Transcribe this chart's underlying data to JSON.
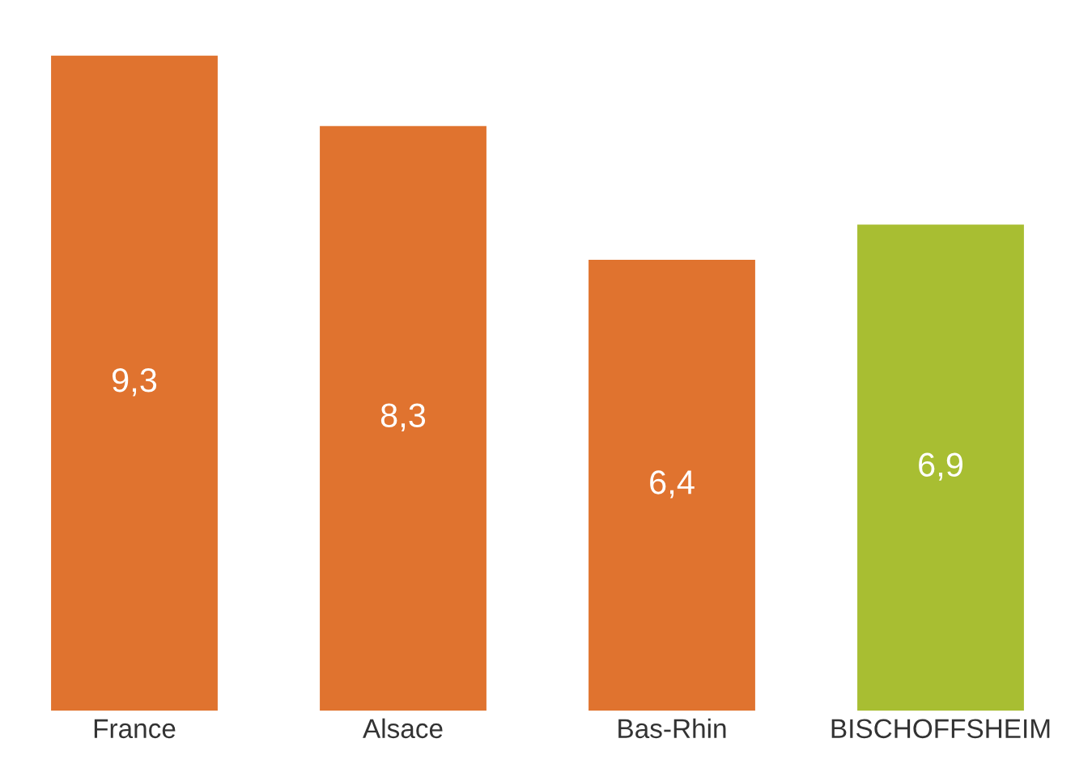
{
  "chart_data": {
    "type": "bar",
    "categories": [
      "France",
      "Alsace",
      "Bas-Rhin",
      "BISCHOFFSHEIM"
    ],
    "values": [
      9.3,
      8.3,
      6.4,
      6.9
    ],
    "colors": [
      "#e0732f",
      "#e0732f",
      "#e0732f",
      "#a8be32"
    ],
    "value_labels": [
      "9,3",
      "8,3",
      "6,4",
      "6,9"
    ],
    "tick_labels": "x",
    "grid": false,
    "legend": false
  }
}
